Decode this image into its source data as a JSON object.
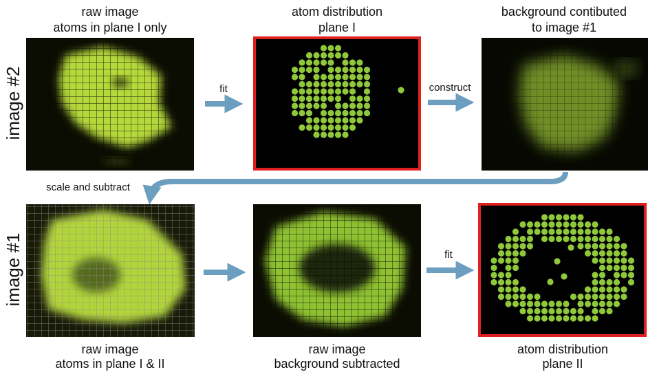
{
  "row_labels": [
    "image #2",
    "image #1"
  ],
  "panels": [
    {
      "caption": [
        "raw image",
        "atoms in plane I only"
      ]
    },
    {
      "caption": [
        "atom distribution",
        "plane I"
      ]
    },
    {
      "caption": [
        "background contibuted",
        "to image #1"
      ]
    },
    {
      "caption": [
        "raw image",
        "atoms in plane I & II"
      ]
    },
    {
      "caption": [
        "raw image",
        "background subtracted"
      ]
    },
    {
      "caption": [
        "atom distribution",
        "plane II"
      ]
    }
  ],
  "arrows": [
    "fit",
    "construct",
    "scale and subtract",
    "fit"
  ]
}
